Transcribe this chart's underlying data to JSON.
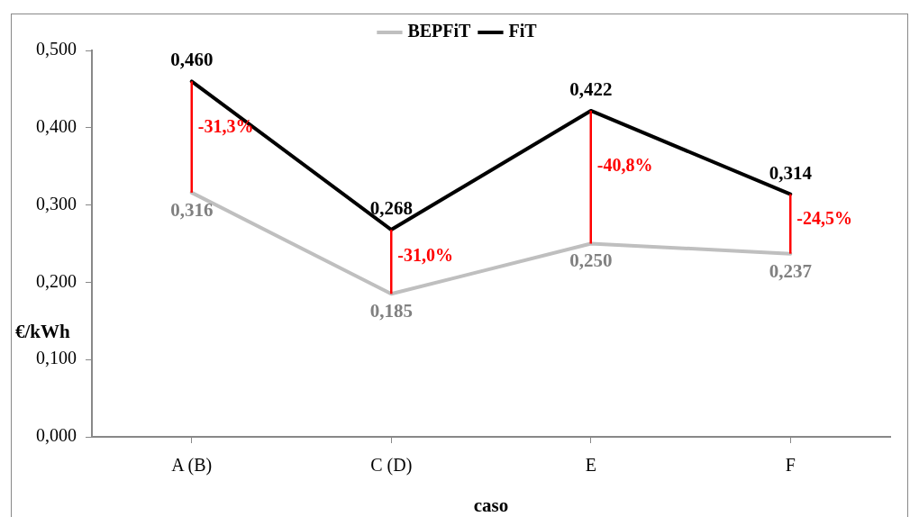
{
  "chart_data": {
    "type": "line",
    "xlabel": "caso",
    "ylabel": "€/kWh",
    "categories": [
      "A (B)",
      "C (D)",
      "E",
      "F"
    ],
    "ylim": [
      0,
      0.5
    ],
    "yticks": [
      {
        "value": 0,
        "label": "0,000"
      },
      {
        "value": 0.1,
        "label": "0,100"
      },
      {
        "value": 0.2,
        "label": "0,200"
      },
      {
        "value": 0.3,
        "label": "0,300"
      },
      {
        "value": 0.4,
        "label": "0,400"
      },
      {
        "value": 0.5,
        "label": "0,500"
      }
    ],
    "grid": false,
    "legend": "top",
    "marker": "none",
    "line_style": "solid",
    "series": [
      {
        "name": "BEPFiT",
        "color": "#bfbfbf",
        "values": [
          0.316,
          0.185,
          0.25,
          0.237
        ],
        "value_labels": [
          "0,316",
          "0,185",
          "0,250",
          "0,237"
        ]
      },
      {
        "name": "FiT",
        "color": "#000000",
        "values": [
          0.46,
          0.268,
          0.422,
          0.314
        ],
        "value_labels": [
          "0,460",
          "0,268",
          "0,422",
          "0,314"
        ]
      }
    ],
    "annotations": [
      {
        "text": "-31,3%",
        "x": "A (B)",
        "y": 0.46
      },
      {
        "text": "-31,0%",
        "x": "C (D)",
        "y": 0.268
      },
      {
        "text": "-40,8%",
        "x": "E",
        "y": 0.422
      },
      {
        "text": "-24,5%",
        "x": "F",
        "y": 0.314
      }
    ]
  }
}
